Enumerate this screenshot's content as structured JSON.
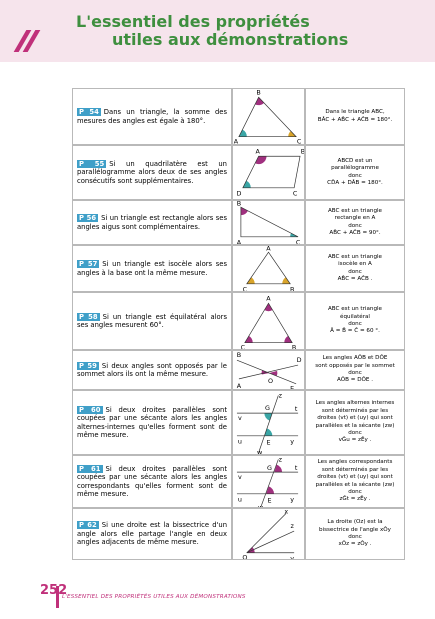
{
  "header": {
    "title_line1": "L'essentiel des propriétés",
    "title_line2": "utiles aux démonstrations"
  },
  "rows": [
    {
      "id": "P 54",
      "text": "Dans un triangle, la somme des mesures des angles est égale à 180°.",
      "conclusion": [
        "Dans le triangle ABC,",
        "BÂC + AB̂C + AĈB = 180°."
      ],
      "figure_labels": [
        "B",
        "A",
        "C"
      ]
    },
    {
      "id": "P 55",
      "text": "Si un quadrilatère est un parallélogramme alors deux de ses angles consécutifs sont supplémentaires.",
      "conclusion": [
        "ABCD est un",
        "parallélogramme",
        "donc",
        "CD̂A + DÂB = 180°."
      ],
      "figure_labels": [
        "A",
        "B",
        "D",
        "C"
      ]
    },
    {
      "id": "P 56",
      "text": "Si un triangle est rectangle alors ses angles aigus sont complémentaires.",
      "conclusion": [
        "ABC est un triangle",
        "rectangle en A",
        "donc",
        "AB̂C + AĈB = 90°."
      ],
      "figure_labels": [
        "B",
        "A",
        "C"
      ]
    },
    {
      "id": "P 57",
      "text": "Si un triangle est isocèle alors ses angles à la base ont la même mesure.",
      "conclusion": [
        "ABC est un triangle",
        "isocèle en A",
        "donc",
        "AB̂C = AĈB ."
      ],
      "figure_labels": [
        "A",
        "C",
        "B"
      ]
    },
    {
      "id": "P 58",
      "text": "Si un triangle est équilatéral alors ses angles mesurent 60°.",
      "conclusion": [
        "ABC est un triangle",
        "équilatéral",
        "donc",
        "Â = B̂ = Ĉ = 60 °."
      ],
      "figure_labels": [
        "A",
        "C",
        "B"
      ]
    },
    {
      "id": "P 59",
      "text": "Si deux angles sont opposés par le sommet alors ils ont la même mesure.",
      "conclusion": [
        "Les angles AÔB et DÔE",
        "sont opposés par le sommet",
        "donc",
        "AÔB = DÔE ."
      ],
      "figure_labels": [
        "B",
        "D",
        "A",
        "O",
        "E"
      ]
    },
    {
      "id": "P 60",
      "text": "Si deux droites parallèles sont coupées par une sécante alors les angles alternes-internes qu'elles forment sont de même mesure.",
      "conclusion": [
        "Les angles alternes internes",
        "sont déterminés par les",
        "droites (vt) et (uy) qui sont",
        "parallèles et la sécante (zw)",
        "donc",
        "vĜu = zÊy ."
      ],
      "figure_labels": [
        "z",
        "G",
        "t",
        "v",
        "u",
        "E",
        "y",
        "w"
      ]
    },
    {
      "id": "P 61",
      "text": "Si deux droites parallèles sont coupées par une sécante alors les angles correspondants qu'elles forment sont de même mesure.",
      "conclusion": [
        "Les angles correspondants",
        "sont déterminés par les",
        "droites (vt) et (uy) qui sont",
        "parallèles et la sécante (zw)",
        "donc",
        "zĜt = zÊy ."
      ],
      "figure_labels": [
        "z",
        "G",
        "t",
        "v",
        "u",
        "E",
        "y",
        "w"
      ]
    },
    {
      "id": "P 62",
      "text": "Si une droite est la bissectrice d'un angle alors elle partage l'angle en deux angles adjacents de même mesure.",
      "conclusion": [
        "La droite (Oz) est la",
        "bissectrice de l'angle xÔy",
        "donc",
        "xÔz = zÔy ."
      ],
      "figure_labels": [
        "x",
        "z",
        "O",
        "y"
      ]
    }
  ],
  "footer": {
    "page_number": "252",
    "text": "L'ESSENTIEL DES PROPRIÉTÉS UTILES AUX DÉMONSTRATIONS"
  }
}
